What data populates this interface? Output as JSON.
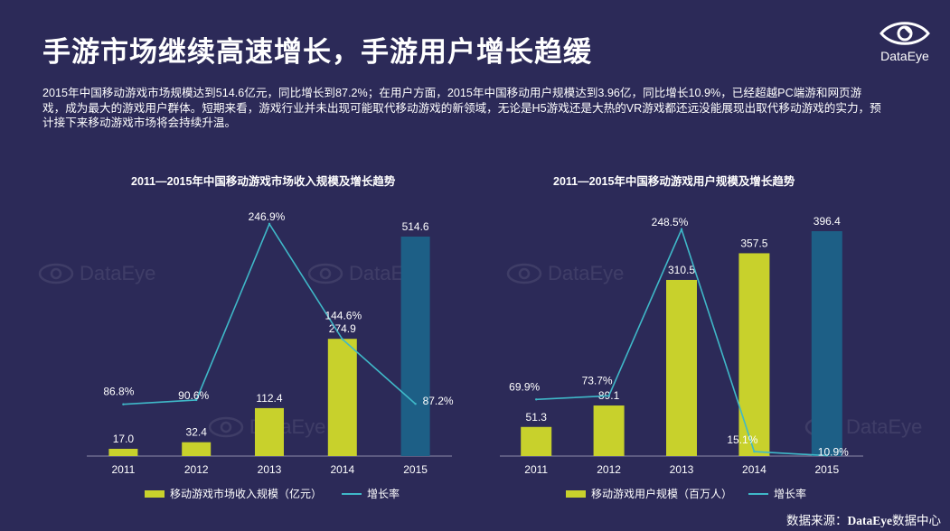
{
  "page": {
    "title": "手游市场继续高速增长，手游用户增长趋缓",
    "summary": "2015年中国移动游戏市场规模达到514.6亿元，同比增长到87.2%；在用户方面，2015年中国移动用户规模达到3.96亿，同比增长10.9%，已经超越PC端游和网页游戏，成为最大的游戏用户群体。短期来看，游戏行业并未出现可能取代移动游戏的新领域，无论是H5游戏还是大热的VR游戏都还远没能展现出取代移动游戏的实力，预计接下来移动游戏市场将会持续升温。",
    "logo_text": "DataEye",
    "watermark": "DataEye",
    "source_prefix": "数据来源：",
    "source_brand": "DataEye",
    "source_suffix": "数据中心"
  },
  "colors": {
    "background": "#2c2a58",
    "bar_yellow": "#c8d12c",
    "bar_highlight": "#1d5f86",
    "line": "#3fb8c8",
    "axis": "#8c8aa8"
  },
  "chart_data": [
    {
      "type": "bar",
      "title": "2011—2015年中国移动游戏市场收入规模及增长趋势",
      "categories": [
        "2011",
        "2012",
        "2013",
        "2014",
        "2015"
      ],
      "series": [
        {
          "name": "移动游戏市场收入规模（亿元）",
          "type": "bar",
          "values": [
            17.0,
            32.4,
            112.4,
            274.9,
            514.6
          ],
          "labels": [
            "17.0",
            "32.4",
            "112.4",
            "274.9",
            "514.6"
          ]
        },
        {
          "name": "增长率",
          "type": "line",
          "values": [
            86.8,
            90.6,
            246.9,
            144.6,
            87.2
          ],
          "labels": [
            "86.8%",
            "90.6%",
            "246.9%",
            "144.6%",
            "87.2%"
          ]
        }
      ],
      "highlight_index": 4,
      "bar_ylim": [
        0,
        550
      ],
      "line_ylim": [
        0,
        280
      ],
      "legend_position": "bottom"
    },
    {
      "type": "bar",
      "title": "2011—2015年中国移动游戏用户规模及增长趋势",
      "categories": [
        "2011",
        "2012",
        "2013",
        "2014",
        "2015"
      ],
      "series": [
        {
          "name": "移动游戏用户规模（百万人）",
          "type": "bar",
          "values": [
            51.3,
            89.1,
            310.5,
            357.5,
            396.4
          ],
          "labels": [
            "51.3",
            "89.1",
            "310.5",
            "357.5",
            "396.4"
          ]
        },
        {
          "name": "增长率",
          "type": "line",
          "values": [
            69.9,
            73.7,
            248.5,
            15.1,
            10.9
          ],
          "labels": [
            "69.9%",
            "73.7%",
            "248.5%",
            "15.1%",
            "10.9%"
          ]
        }
      ],
      "highlight_index": 4,
      "bar_ylim": [
        0,
        420
      ],
      "line_ylim": [
        0,
        280
      ],
      "legend_position": "bottom"
    }
  ]
}
